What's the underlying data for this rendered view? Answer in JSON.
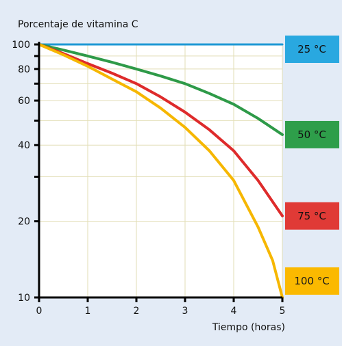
{
  "chart_data": {
    "type": "line",
    "ylabel": "Porcentaje de vitamina C",
    "xlabel": "Tiempo (horas)",
    "x_ticks": [
      0,
      1,
      2,
      3,
      4,
      5
    ],
    "y_ticks": [
      10,
      20,
      40,
      60,
      80,
      100
    ],
    "y_scale": "log",
    "xlim": [
      0,
      5
    ],
    "ylim": [
      10,
      100
    ],
    "grid": true,
    "legend": "right",
    "series": [
      {
        "name": "25 °C",
        "color": "#1e98d4",
        "label_bg": "#29a8e0",
        "x": [
          0,
          1,
          2,
          3,
          4,
          5
        ],
        "y": [
          100,
          100,
          100,
          100,
          100,
          100
        ]
      },
      {
        "name": "50 °C",
        "color": "#2e9a48",
        "label_bg": "#2e9e4a",
        "x": [
          0,
          0.5,
          1,
          1.5,
          2,
          2.5,
          3,
          3.5,
          4,
          4.5,
          5
        ],
        "y": [
          100,
          95,
          90,
          85,
          80,
          75,
          70,
          64,
          58,
          51,
          44
        ]
      },
      {
        "name": "75 °C",
        "color": "#de2b2b",
        "label_bg": "#e03a36",
        "x": [
          0,
          0.5,
          1,
          1.5,
          2,
          2.5,
          3,
          3.5,
          4,
          4.5,
          5
        ],
        "y": [
          100,
          92,
          84,
          77,
          70,
          62,
          54,
          46,
          38,
          29,
          21
        ]
      },
      {
        "name": "100 °C",
        "color": "#f6b700",
        "label_bg": "#fbb900",
        "x": [
          0,
          0.5,
          1,
          1.5,
          2,
          2.5,
          3,
          3.5,
          4,
          4.5,
          4.8,
          5
        ],
        "y": [
          100,
          91,
          82,
          73,
          65,
          56,
          47,
          38,
          29,
          19,
          14,
          10
        ]
      }
    ]
  }
}
